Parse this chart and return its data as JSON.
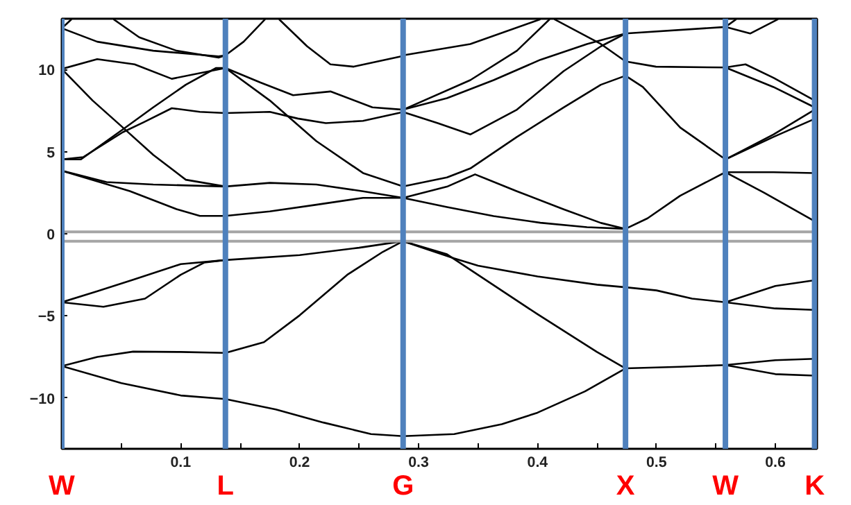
{
  "chart_data": {
    "type": "line",
    "xlim": [
      0,
      0.635
    ],
    "ylim": [
      -13.1,
      13.1
    ],
    "xticks": [
      {
        "value": 0.05,
        "label": null
      },
      0.1,
      {
        "value": 0.15,
        "label": null
      },
      0.2,
      {
        "value": 0.25,
        "label": null
      },
      0.3,
      {
        "value": 0.35,
        "label": null
      },
      0.4,
      {
        "value": 0.45,
        "label": null
      },
      0.5,
      {
        "value": 0.55,
        "label": null
      },
      0.6
    ],
    "yticks": [
      -10,
      -5,
      0,
      5,
      10
    ],
    "grid": false,
    "ref_lines": [
      {
        "axis": "y",
        "value": 0.12,
        "label": null,
        "color": "#a6a6a6"
      },
      {
        "axis": "y",
        "value": -0.45,
        "label": null,
        "color": "#a6a6a6"
      },
      {
        "axis": "x",
        "value": 0,
        "label": "W",
        "color": "#4f81bd"
      },
      {
        "axis": "x",
        "value": 0.1376,
        "label": "L",
        "color": "#4f81bd"
      },
      {
        "axis": "x",
        "value": 0.287,
        "label": "G",
        "color": "#4f81bd"
      },
      {
        "axis": "x",
        "value": 0.474,
        "label": "X",
        "color": "#4f81bd"
      },
      {
        "axis": "x",
        "value": 0.558,
        "label": "W",
        "color": "#4f81bd"
      },
      {
        "axis": "x",
        "value": 0.633,
        "label": "K",
        "color": "#4f81bd"
      }
    ],
    "series": [
      {
        "color": "#000000",
        "x": [
          0,
          0.03,
          0.06,
          0.1,
          0.1376,
          0.2,
          0.25,
          0.287,
          0.33,
          0.35,
          0.4,
          0.45,
          0.474,
          0.5,
          0.53,
          0.558,
          0.6,
          0.633
        ],
        "values": [
          -4.17,
          -3.5,
          -2.8,
          -1.85,
          -1.6,
          -1.3,
          -0.85,
          -0.45,
          -1.5,
          -1.94,
          -2.6,
          -3.1,
          -3.26,
          -3.45,
          -3.95,
          -4.17,
          -3.18,
          -2.83
        ]
      },
      {
        "color": "#000000",
        "x": [
          0.558,
          0.6,
          0.633
        ],
        "values": [
          -4.17,
          -4.55,
          -4.64
        ]
      },
      {
        "color": "#000000",
        "x": [
          0,
          0.035,
          0.07,
          0.1,
          0.12,
          0.1376
        ],
        "values": [
          -4.17,
          -4.45,
          -3.95,
          -2.5,
          -1.75,
          -1.6
        ]
      },
      {
        "color": "#000000",
        "x": [
          0,
          0.03,
          0.06,
          0.1,
          0.1376,
          0.17,
          0.2,
          0.24,
          0.27,
          0.287,
          0.3239,
          0.4,
          0.45,
          0.474,
          0.52,
          0.558,
          0.6,
          0.633
        ],
        "values": [
          -8.06,
          -7.5,
          -7.18,
          -7.2,
          -7.26,
          -6.6,
          -4.97,
          -2.5,
          -1.1,
          -0.45,
          -1.25,
          -4.9,
          -7.2,
          -8.2,
          -8.1,
          -8.0,
          -7.7,
          -7.62
        ]
      },
      {
        "color": "#000000",
        "x": [
          0.558,
          0.6,
          0.633
        ],
        "values": [
          -8.0,
          -8.55,
          -8.64
        ]
      },
      {
        "color": "#000000",
        "x": [
          0,
          0.05,
          0.1,
          0.1376,
          0.18,
          0.22,
          0.26,
          0.287,
          0.33,
          0.37,
          0.4,
          0.44,
          0.474
        ],
        "values": [
          -8.06,
          -9.1,
          -9.85,
          -10.07,
          -10.7,
          -11.5,
          -12.2,
          -12.33,
          -12.2,
          -11.6,
          -10.9,
          -9.6,
          -8.2
        ]
      },
      {
        "color": "#000000",
        "x": [
          0,
          0.0376,
          0.0769,
          0.1376,
          0.1749,
          0.2141,
          0.2533,
          0.287,
          0.3239,
          0.3475,
          0.3827,
          0.422,
          0.4533,
          0.474,
          0.4925,
          0.52,
          0.558,
          0.5984,
          0.633
        ],
        "values": [
          3.84,
          3.15,
          3.0,
          2.88,
          3.1,
          3.0,
          2.59,
          2.19,
          2.87,
          3.62,
          2.59,
          1.49,
          0.66,
          0.3,
          0.94,
          2.32,
          3.75,
          3.75,
          3.7
        ]
      },
      {
        "color": "#000000",
        "x": [
          0,
          0.0572,
          0.0965,
          0.1161,
          0.1376,
          0.1749,
          0.2141,
          0.2533,
          0.287,
          0.3239,
          0.3631,
          0.4024,
          0.4416,
          0.474
        ],
        "values": [
          3.84,
          2.6,
          1.5,
          1.09,
          1.09,
          1.36,
          1.77,
          2.19,
          2.19,
          1.63,
          1.08,
          0.67,
          0.4,
          0.3
        ]
      },
      {
        "color": "#000000",
        "x": [
          0,
          0.0259,
          0.0514,
          0.0769,
          0.1043,
          0.1376
        ],
        "values": [
          10.04,
          8.12,
          6.47,
          4.81,
          3.29,
          2.88
        ]
      },
      {
        "color": "#000000",
        "x": [
          0,
          0.0161,
          0.0514,
          0.0769,
          0.1043,
          0.1298,
          0.1376,
          0.1749,
          0.2141,
          0.2533,
          0.287,
          0.3239,
          0.3435,
          0.3827,
          0.422,
          0.4533,
          0.474,
          0.4886,
          0.52,
          0.558,
          0.5984,
          0.633
        ],
        "values": [
          4.53,
          4.53,
          6.36,
          7.7,
          9.08,
          10.1,
          10.1,
          8.12,
          5.64,
          3.7,
          2.88,
          3.43,
          3.98,
          5.9,
          7.7,
          9.08,
          9.63,
          8.94,
          6.47,
          4.53,
          6.05,
          7.56
        ]
      },
      {
        "color": "#000000",
        "x": [
          0,
          0.018,
          0.0514,
          0.069,
          0.0925,
          0.1161,
          0.1376,
          0.1749,
          0.1984,
          0.222,
          0.2533,
          0.287,
          0.3161,
          0.3435,
          0.3827,
          0.422,
          0.4533,
          0.474,
          0.558,
          0.5788,
          0.6023
        ],
        "values": [
          4.53,
          4.67,
          6.19,
          6.8,
          7.65,
          7.43,
          7.35,
          7.43,
          7.02,
          6.74,
          6.88,
          7.42,
          6.74,
          6.05,
          7.56,
          9.91,
          11.42,
          12.2,
          12.6,
          12.2,
          13.07
        ]
      },
      {
        "color": "#000000",
        "x": [
          0,
          0.0298,
          0.0612,
          0.0925,
          0.1376,
          0.1671,
          0.1945,
          0.2259,
          0.2612,
          0.287,
          0.3435,
          0.3827,
          0.4102
        ],
        "values": [
          10.04,
          10.64,
          10.32,
          9.44,
          10.1,
          9.21,
          8.44,
          8.67,
          7.7,
          7.56,
          9.36,
          11.15,
          13.07
        ]
      },
      {
        "color": "#000000",
        "x": [
          0,
          0.0298,
          0.0769,
          0.1318,
          0.1376,
          0.1529,
          0.171
        ],
        "values": [
          12.52,
          11.7,
          11.15,
          10.81,
          10.87,
          11.7,
          13.07
        ]
      },
      {
        "color": "#000000",
        "x": [
          0.0435,
          0.0651,
          0.0965,
          0.1318,
          0.1376
        ],
        "values": [
          13.07,
          11.97,
          11.15,
          10.73,
          10.87
        ]
      },
      {
        "color": "#000000",
        "x": [
          0,
          0.0082
        ],
        "values": [
          12.52,
          13.07
        ]
      },
      {
        "color": "#000000",
        "x": [
          0.1827,
          0.2063,
          0.2259,
          0.2455,
          0.2847,
          0.287,
          0.3435,
          0.4024
        ],
        "values": [
          13.07,
          11.42,
          10.32,
          10.18,
          10.8,
          10.87,
          11.56,
          13.07
        ]
      },
      {
        "color": "#000000",
        "x": [
          0.4141,
          0.4533,
          0.474,
          0.4996,
          0.558,
          0.5749,
          0.5984,
          0.633
        ],
        "values": [
          13.07,
          11.56,
          10.5,
          10.18,
          10.13,
          10.32,
          9.5,
          8.12
        ]
      },
      {
        "color": "#000000",
        "x": [
          0.558,
          0.5984,
          0.633
        ],
        "values": [
          10.13,
          8.94,
          7.7
        ]
      },
      {
        "color": "#000000",
        "x": [
          0.287,
          0.3239,
          0.3631,
          0.4024,
          0.4416,
          0.474
        ],
        "values": [
          7.56,
          8.26,
          9.36,
          10.6,
          11.56,
          12.2
        ]
      },
      {
        "color": "#000000",
        "x": [
          0.558,
          0.5906,
          0.633
        ],
        "values": [
          3.75,
          2.5,
          0.77
        ]
      },
      {
        "color": "#000000",
        "x": [
          0.558,
          0.5984,
          0.633
        ],
        "values": [
          4.53,
          5.9,
          7.0
        ]
      },
      {
        "color": "#000000",
        "x": [
          0.558,
          0.5671
        ],
        "values": [
          12.6,
          13.07
        ]
      }
    ]
  }
}
